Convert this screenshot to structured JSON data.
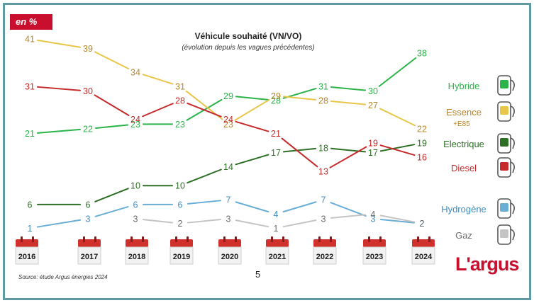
{
  "header": {
    "unit_badge": "en %"
  },
  "footer": {
    "source": "Source: étude Argus énergies 2024",
    "page_number": "5",
    "logo": "L'argus"
  },
  "chart_data": {
    "type": "line",
    "title": "Véhicule souhaité (VN/VO)",
    "subtitle": "(évolution depuis les vagues précédentes)",
    "x": [
      "2016",
      "2017",
      "2018",
      "2019",
      "2020",
      "2021",
      "2022",
      "2023",
      "2024"
    ],
    "series": [
      {
        "name": "Hybride",
        "color": "#2bb34a",
        "icon": "plug-hybrid-icon",
        "values": [
          21,
          22,
          23,
          23,
          29,
          28,
          31,
          30,
          38
        ]
      },
      {
        "name": "Essence",
        "sublabel": "+E85",
        "color": "#e8c64a",
        "label_color": "#b8862a",
        "icon": "fuel-pump-icon",
        "values": [
          41,
          39,
          34,
          31,
          23,
          29,
          28,
          27,
          22
        ]
      },
      {
        "name": "Electrique",
        "color": "#2e6f26",
        "icon": "electric-charger-icon",
        "values": [
          6,
          6,
          10,
          10,
          14,
          17,
          18,
          17,
          19
        ]
      },
      {
        "name": "Diesel",
        "color": "#c62a2a",
        "icon": "diesel-pump-icon",
        "values": [
          31,
          30,
          24,
          28,
          24,
          21,
          13,
          19,
          16
        ]
      },
      {
        "name": "Hydrogène",
        "color": "#6aaed6",
        "label_color": "#3d8cc2",
        "icon": "hydrogen-pump-icon",
        "values": [
          1,
          3,
          6,
          6,
          7,
          4,
          7,
          3,
          2
        ]
      },
      {
        "name": "Gaz",
        "color": "#c4c4c4",
        "label_color": "#6a6a6a",
        "icon": "gas-pump-icon",
        "values": [
          null,
          null,
          3,
          2,
          3,
          1,
          3,
          4,
          2
        ]
      }
    ]
  }
}
